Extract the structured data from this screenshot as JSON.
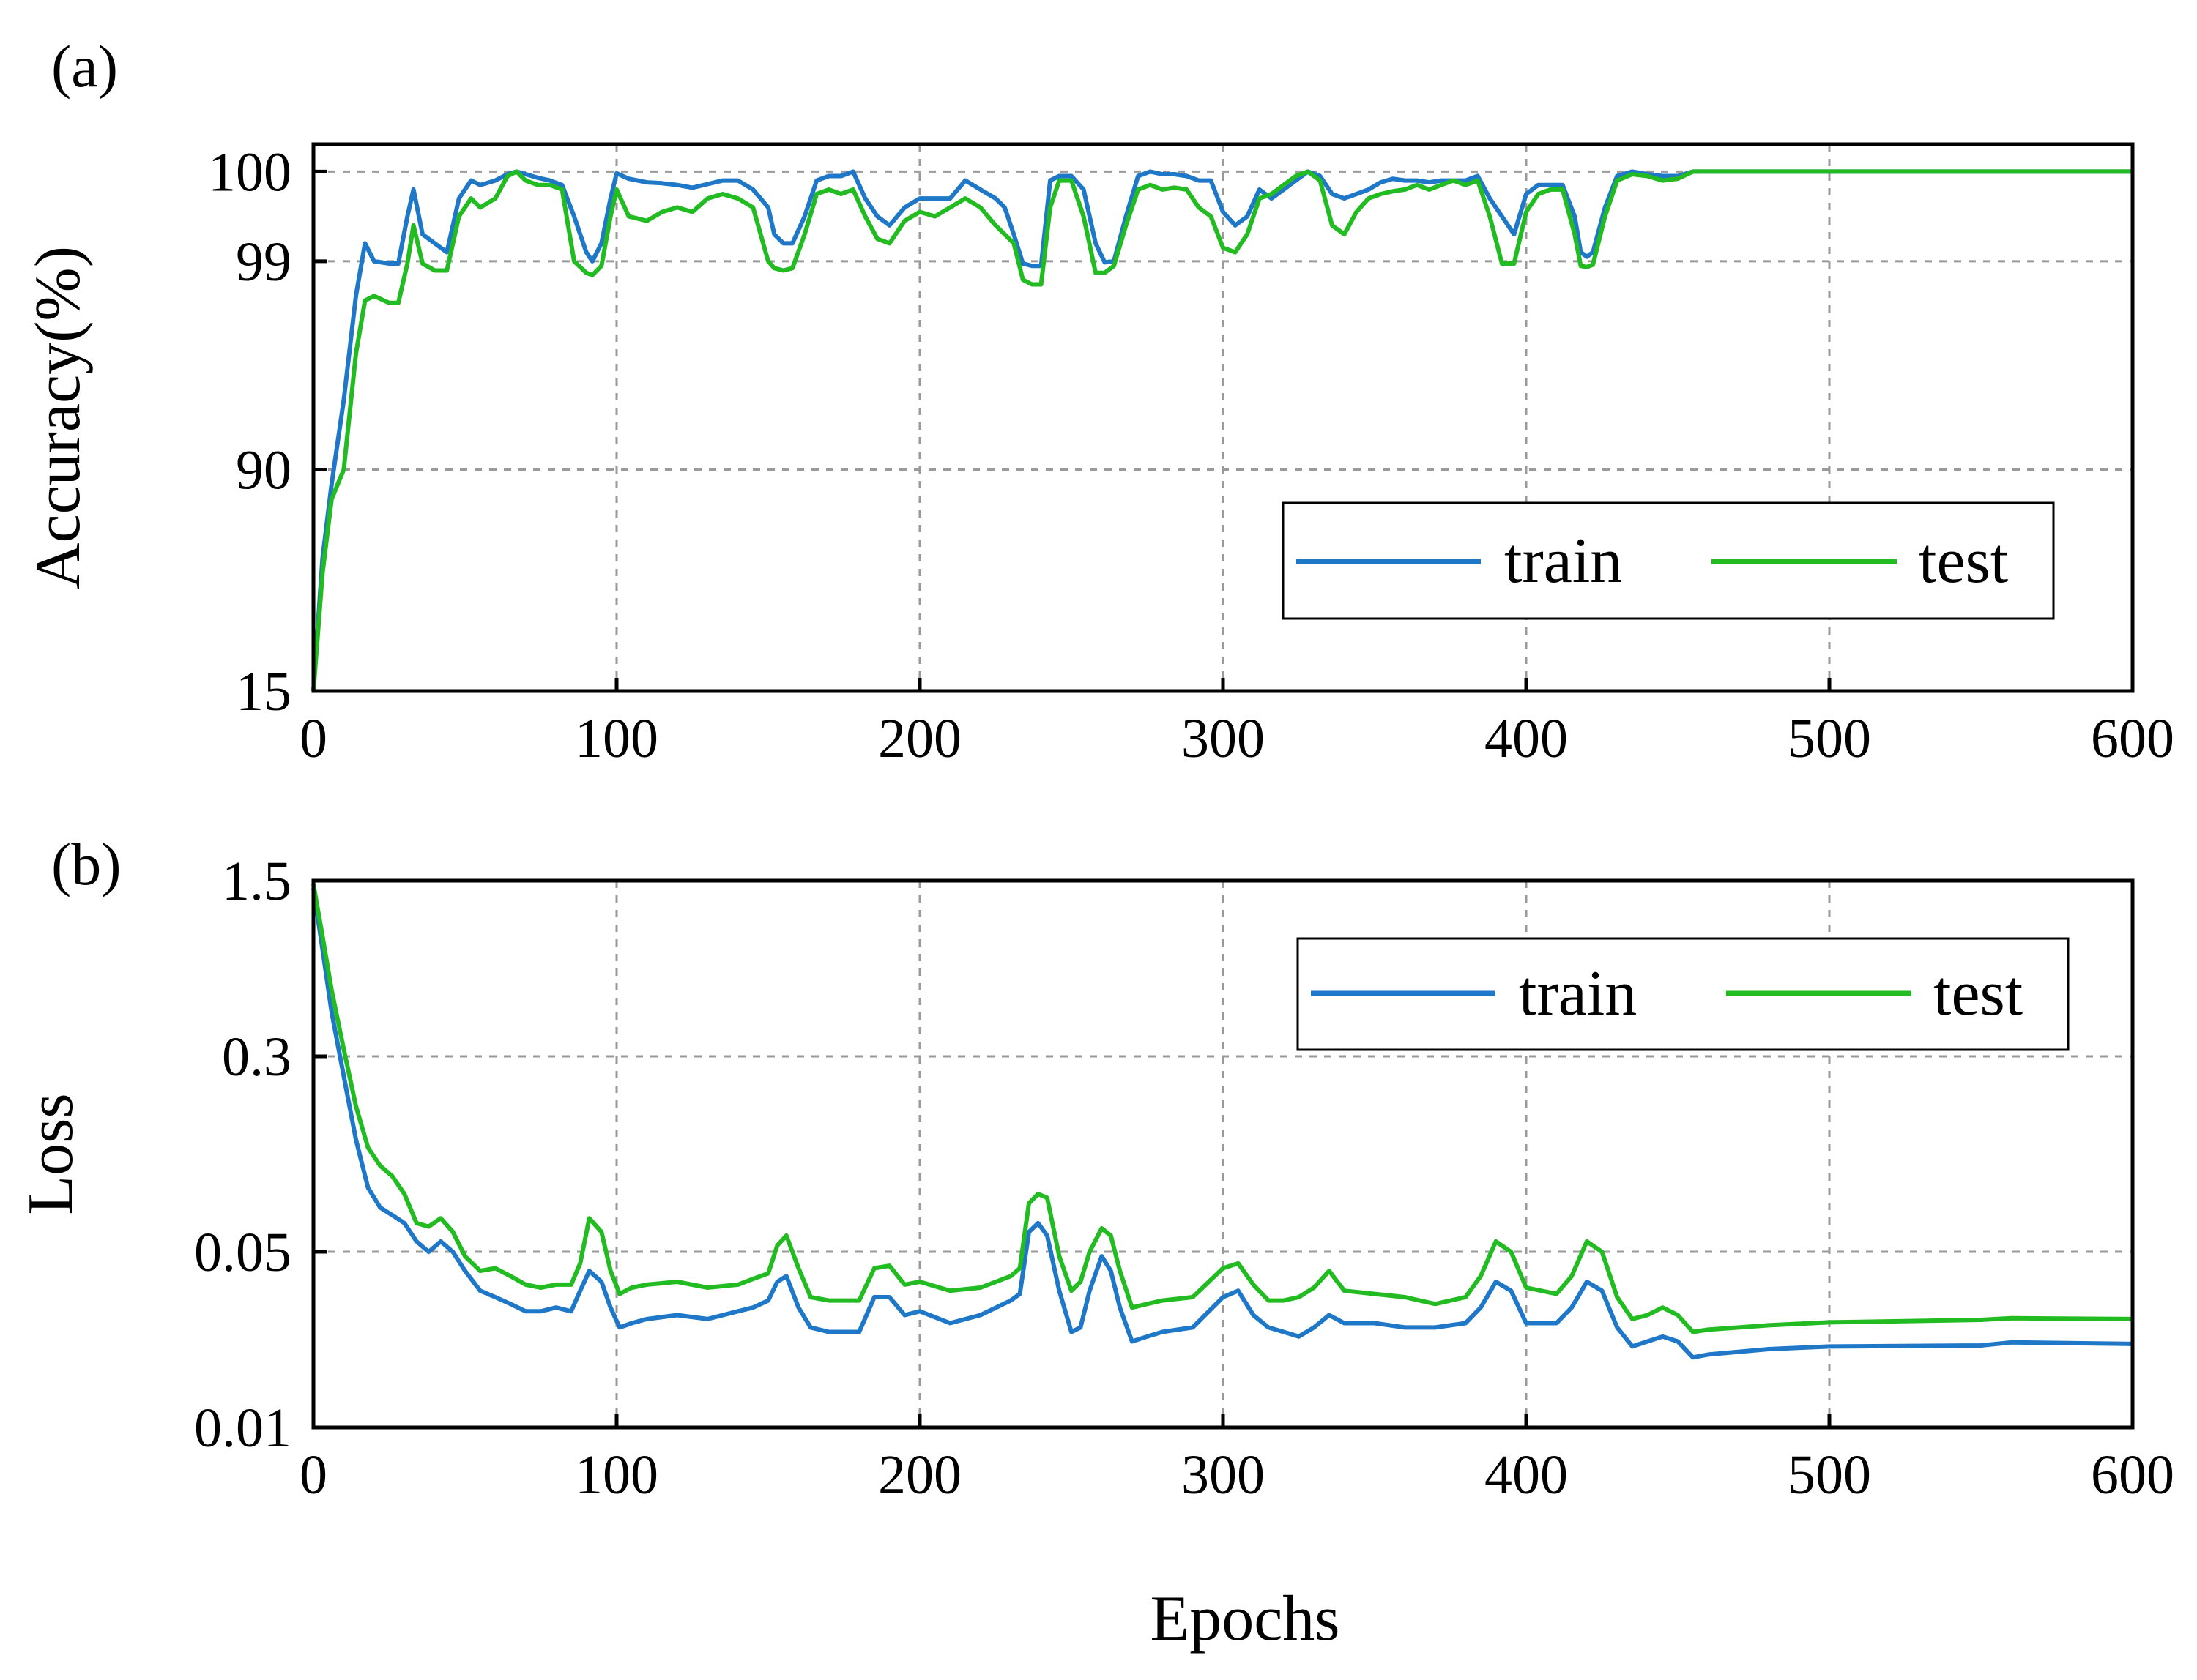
{
  "colors": {
    "train": "#1f77c8",
    "test": "#22bb22",
    "grid": "#9a9a9a",
    "axis": "#000000"
  },
  "figure": {
    "xlabel": "Epochs"
  },
  "chart_data": [
    {
      "panel": "(a)",
      "type": "line",
      "ylabel": "Accuracy(%)",
      "xlabel": "",
      "xlim": [
        0,
        600
      ],
      "xticks": [
        0,
        100,
        200,
        300,
        400,
        500,
        600
      ],
      "xtick_labels": [
        "0",
        "100",
        "200",
        "300",
        "400",
        "500",
        "600"
      ],
      "yticks": [
        15,
        90,
        99,
        100
      ],
      "ytick_labels": [
        "15",
        "90",
        "99",
        "100"
      ],
      "yscale_note": "nonlinear axis, tick values placed at fixed fractions",
      "legend": {
        "position": "right",
        "entries": [
          "train",
          "test"
        ]
      },
      "series": [
        {
          "name": "train",
          "x": [
            0,
            3,
            6,
            10,
            14,
            17,
            20,
            25,
            28,
            31,
            33,
            36,
            40,
            44,
            48,
            52,
            55,
            60,
            64,
            67,
            70,
            74,
            78,
            82,
            86,
            90,
            92,
            95,
            98,
            100,
            104,
            110,
            115,
            120,
            125,
            130,
            135,
            140,
            145,
            150,
            152,
            155,
            158,
            162,
            166,
            170,
            174,
            178,
            182,
            186,
            190,
            195,
            200,
            205,
            210,
            215,
            220,
            225,
            228,
            231,
            234,
            237,
            240,
            243,
            246,
            250,
            254,
            258,
            261,
            264,
            268,
            272,
            276,
            280,
            284,
            288,
            292,
            296,
            300,
            304,
            308,
            312,
            316,
            320,
            324,
            328,
            332,
            336,
            340,
            344,
            348,
            352,
            356,
            360,
            364,
            368,
            372,
            376,
            380,
            384,
            388,
            392,
            396,
            400,
            404,
            408,
            412,
            416,
            418,
            420,
            422,
            426,
            430,
            435,
            440,
            445,
            450,
            455,
            460,
            480,
            500,
            550,
            600
          ],
          "y": [
            15,
            60,
            85,
            93,
            97.5,
            99.2,
            99.0,
            98.9,
            98.9,
            99.5,
            99.8,
            99.3,
            99.2,
            99.1,
            99.7,
            99.9,
            99.85,
            99.9,
            99.97,
            100.0,
            99.97,
            99.93,
            99.9,
            99.85,
            99.5,
            99.1,
            99.0,
            99.2,
            99.7,
            99.98,
            99.92,
            99.88,
            99.87,
            99.85,
            99.82,
            99.86,
            99.9,
            99.9,
            99.8,
            99.6,
            99.3,
            99.2,
            99.2,
            99.5,
            99.9,
            99.95,
            99.95,
            100.0,
            99.7,
            99.5,
            99.4,
            99.6,
            99.7,
            99.7,
            99.7,
            99.9,
            99.8,
            99.7,
            99.6,
            99.3,
            98.9,
            98.8,
            98.8,
            99.9,
            99.95,
            99.95,
            99.8,
            99.2,
            98.95,
            99.0,
            99.5,
            99.95,
            100.0,
            99.97,
            99.97,
            99.95,
            99.9,
            99.9,
            99.55,
            99.4,
            99.5,
            99.8,
            99.7,
            99.8,
            99.9,
            100.0,
            99.95,
            99.75,
            99.7,
            99.75,
            99.8,
            99.88,
            99.92,
            99.9,
            99.9,
            99.88,
            99.9,
            99.9,
            99.9,
            99.95,
            99.7,
            99.5,
            99.3,
            99.75,
            99.85,
            99.85,
            99.85,
            99.5,
            99.1,
            99.05,
            99.1,
            99.6,
            99.95,
            100.0,
            99.97,
            99.95,
            99.95,
            100.0,
            100.0,
            100.0,
            100.0,
            100.0,
            100.0
          ]
        },
        {
          "name": "test",
          "x": [
            0,
            3,
            6,
            10,
            14,
            17,
            20,
            25,
            28,
            31,
            33,
            36,
            40,
            44,
            48,
            52,
            55,
            60,
            64,
            67,
            70,
            74,
            78,
            82,
            86,
            90,
            92,
            95,
            98,
            100,
            104,
            110,
            115,
            120,
            125,
            130,
            135,
            140,
            145,
            150,
            152,
            155,
            158,
            162,
            166,
            170,
            174,
            178,
            182,
            186,
            190,
            195,
            200,
            205,
            210,
            215,
            220,
            225,
            228,
            231,
            234,
            237,
            240,
            243,
            246,
            250,
            254,
            258,
            261,
            264,
            268,
            272,
            276,
            280,
            284,
            288,
            292,
            296,
            300,
            304,
            308,
            312,
            316,
            320,
            324,
            328,
            332,
            336,
            340,
            344,
            348,
            352,
            356,
            360,
            364,
            368,
            372,
            376,
            380,
            384,
            388,
            392,
            396,
            400,
            404,
            408,
            412,
            416,
            418,
            420,
            422,
            426,
            430,
            435,
            440,
            445,
            450,
            455,
            460,
            480,
            500,
            550,
            600
          ],
          "y": [
            15,
            55,
            80,
            90,
            95,
            97.3,
            97.5,
            97.2,
            97.2,
            98.9,
            99.4,
            98.9,
            98.6,
            98.6,
            99.5,
            99.7,
            99.6,
            99.7,
            99.95,
            100.0,
            99.9,
            99.85,
            99.85,
            99.8,
            99.0,
            98.5,
            98.4,
            98.8,
            99.5,
            99.8,
            99.5,
            99.45,
            99.55,
            99.6,
            99.55,
            99.7,
            99.75,
            99.7,
            99.6,
            99.0,
            98.7,
            98.6,
            98.7,
            99.3,
            99.75,
            99.8,
            99.75,
            99.8,
            99.5,
            99.25,
            99.2,
            99.45,
            99.55,
            99.5,
            99.6,
            99.7,
            99.6,
            99.4,
            99.3,
            99.2,
            98.2,
            98.0,
            98.0,
            99.6,
            99.9,
            99.9,
            99.5,
            98.5,
            98.5,
            98.8,
            99.4,
            99.8,
            99.85,
            99.8,
            99.82,
            99.8,
            99.6,
            99.5,
            99.15,
            99.1,
            99.3,
            99.7,
            99.75,
            99.85,
            99.95,
            100.0,
            99.9,
            99.4,
            99.3,
            99.55,
            99.7,
            99.75,
            99.78,
            99.8,
            99.85,
            99.8,
            99.85,
            99.9,
            99.85,
            99.9,
            99.5,
            98.9,
            98.9,
            99.55,
            99.75,
            99.8,
            99.8,
            99.3,
            98.8,
            98.75,
            98.85,
            99.5,
            99.9,
            99.97,
            99.95,
            99.9,
            99.92,
            100.0,
            100.0,
            100.0,
            100.0,
            100.0,
            100.0
          ]
        }
      ]
    },
    {
      "panel": "(b)",
      "type": "line",
      "ylabel": "Loss",
      "xlabel": "Epochs",
      "xlim": [
        0,
        600
      ],
      "ylim": [
        0.01,
        1.5
      ],
      "yscale": "log",
      "xticks": [
        0,
        100,
        200,
        300,
        400,
        500,
        600
      ],
      "xtick_labels": [
        "0",
        "100",
        "200",
        "300",
        "400",
        "500",
        "600"
      ],
      "yticks": [
        0.01,
        0.05,
        0.3,
        1.5
      ],
      "ytick_labels": [
        "0.01",
        "0.05",
        "0.3",
        "1.5"
      ],
      "legend": {
        "position": "top-right",
        "entries": [
          "train",
          "test"
        ]
      },
      "series": [
        {
          "name": "train",
          "x": [
            0,
            3,
            6,
            10,
            14,
            18,
            22,
            26,
            30,
            34,
            38,
            42,
            46,
            50,
            55,
            60,
            65,
            70,
            75,
            80,
            85,
            88,
            91,
            95,
            98,
            101,
            105,
            110,
            120,
            130,
            140,
            145,
            150,
            153,
            156,
            160,
            164,
            170,
            180,
            185,
            190,
            195,
            200,
            210,
            220,
            230,
            233,
            236,
            239,
            242,
            246,
            250,
            253,
            256,
            260,
            263,
            266,
            270,
            275,
            280,
            290,
            300,
            305,
            310,
            315,
            320,
            325,
            330,
            335,
            340,
            350,
            360,
            370,
            380,
            385,
            390,
            395,
            400,
            410,
            415,
            420,
            425,
            430,
            435,
            440,
            445,
            450,
            455,
            460,
            480,
            500,
            550,
            560,
            600
          ],
          "y": [
            1.4,
            0.8,
            0.45,
            0.25,
            0.14,
            0.09,
            0.075,
            0.07,
            0.065,
            0.055,
            0.05,
            0.055,
            0.05,
            0.042,
            0.035,
            0.033,
            0.031,
            0.029,
            0.029,
            0.03,
            0.029,
            0.035,
            0.042,
            0.038,
            0.03,
            0.025,
            0.026,
            0.027,
            0.028,
            0.027,
            0.029,
            0.03,
            0.032,
            0.038,
            0.04,
            0.03,
            0.025,
            0.024,
            0.024,
            0.033,
            0.033,
            0.028,
            0.029,
            0.026,
            0.028,
            0.032,
            0.034,
            0.06,
            0.065,
            0.058,
            0.035,
            0.024,
            0.025,
            0.035,
            0.048,
            0.042,
            0.03,
            0.022,
            0.023,
            0.024,
            0.025,
            0.033,
            0.035,
            0.028,
            0.025,
            0.024,
            0.023,
            0.025,
            0.028,
            0.026,
            0.026,
            0.025,
            0.025,
            0.026,
            0.03,
            0.038,
            0.035,
            0.026,
            0.026,
            0.03,
            0.038,
            0.035,
            0.025,
            0.021,
            0.022,
            0.023,
            0.022,
            0.019,
            0.0195,
            0.0205,
            0.021,
            0.0212,
            0.0218,
            0.0215
          ]
        },
        {
          "name": "test",
          "x": [
            0,
            3,
            6,
            10,
            14,
            18,
            22,
            26,
            30,
            34,
            38,
            42,
            46,
            50,
            55,
            60,
            65,
            70,
            75,
            80,
            85,
            88,
            91,
            95,
            98,
            101,
            105,
            110,
            120,
            130,
            140,
            145,
            150,
            153,
            156,
            160,
            164,
            170,
            180,
            185,
            190,
            195,
            200,
            210,
            220,
            230,
            233,
            236,
            239,
            242,
            246,
            250,
            253,
            256,
            260,
            263,
            266,
            270,
            275,
            280,
            290,
            300,
            305,
            310,
            315,
            320,
            325,
            330,
            335,
            340,
            350,
            360,
            370,
            380,
            385,
            390,
            395,
            400,
            410,
            415,
            420,
            425,
            430,
            435,
            440,
            445,
            450,
            455,
            460,
            480,
            500,
            550,
            560,
            600
          ],
          "y": [
            1.45,
            0.9,
            0.55,
            0.32,
            0.19,
            0.13,
            0.11,
            0.1,
            0.085,
            0.065,
            0.063,
            0.068,
            0.06,
            0.048,
            0.042,
            0.043,
            0.04,
            0.037,
            0.036,
            0.037,
            0.037,
            0.045,
            0.068,
            0.06,
            0.042,
            0.034,
            0.036,
            0.037,
            0.038,
            0.036,
            0.037,
            0.039,
            0.041,
            0.053,
            0.058,
            0.043,
            0.033,
            0.032,
            0.032,
            0.043,
            0.044,
            0.037,
            0.038,
            0.035,
            0.036,
            0.04,
            0.043,
            0.078,
            0.085,
            0.082,
            0.048,
            0.035,
            0.038,
            0.05,
            0.062,
            0.058,
            0.042,
            0.03,
            0.031,
            0.032,
            0.033,
            0.043,
            0.045,
            0.037,
            0.032,
            0.032,
            0.033,
            0.036,
            0.042,
            0.035,
            0.034,
            0.033,
            0.031,
            0.033,
            0.04,
            0.055,
            0.05,
            0.036,
            0.034,
            0.04,
            0.055,
            0.05,
            0.033,
            0.027,
            0.028,
            0.03,
            0.028,
            0.024,
            0.0245,
            0.0255,
            0.0262,
            0.0268,
            0.0272,
            0.027
          ]
        }
      ]
    }
  ]
}
